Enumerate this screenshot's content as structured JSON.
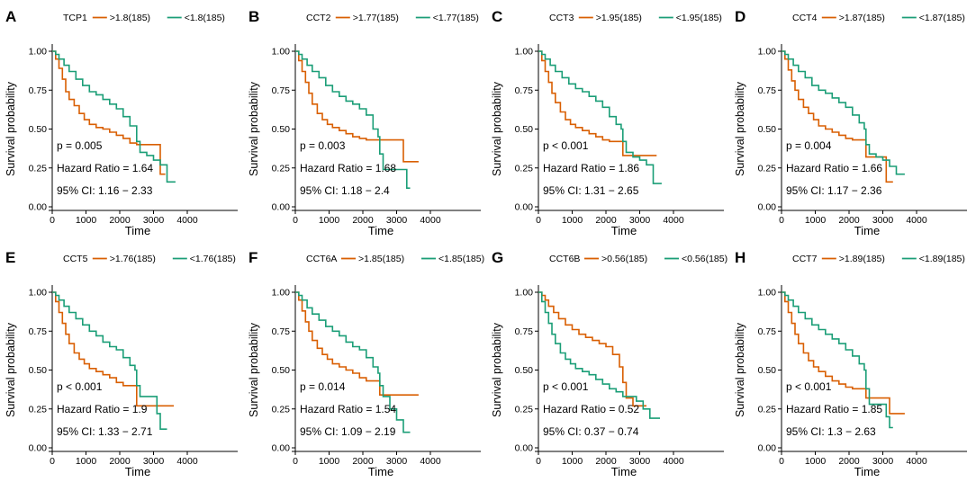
{
  "figure": {
    "legend_high_color": "#d95f02",
    "legend_low_color": "#1b9e77",
    "xlabel": "Time",
    "ylabel": "Survival probability",
    "x_ticks": [
      0,
      1000,
      2000,
      3000,
      4000
    ],
    "y_ticks": [
      "0.00",
      "0.25",
      "0.50",
      "0.75",
      "1.00"
    ]
  },
  "chart_data": [
    {
      "type": "line",
      "panel": "A",
      "gene": "TCP1",
      "series": [
        {
          "name": ">1.8(185)",
          "x": [
            0,
            100,
            200,
            300,
            400,
            500,
            650,
            800,
            950,
            1100,
            1300,
            1500,
            1700,
            1900,
            2100,
            2300,
            2500,
            2700,
            2900,
            3100,
            3200,
            3350
          ],
          "y": [
            1.0,
            0.95,
            0.89,
            0.82,
            0.74,
            0.69,
            0.65,
            0.6,
            0.56,
            0.53,
            0.51,
            0.5,
            0.48,
            0.46,
            0.44,
            0.41,
            0.4,
            0.4,
            0.4,
            0.4,
            0.21,
            0.21
          ]
        },
        {
          "name": "<1.8(185)",
          "x": [
            0,
            100,
            200,
            350,
            500,
            700,
            900,
            1100,
            1300,
            1500,
            1700,
            1900,
            2100,
            2300,
            2450,
            2500,
            2600,
            2800,
            3000,
            3200,
            3400,
            3650
          ],
          "y": [
            1.0,
            0.98,
            0.95,
            0.91,
            0.87,
            0.82,
            0.78,
            0.74,
            0.72,
            0.69,
            0.66,
            0.63,
            0.58,
            0.52,
            0.52,
            0.42,
            0.35,
            0.33,
            0.3,
            0.27,
            0.16,
            0.16
          ]
        }
      ],
      "p_text": "p = 0.005",
      "hr_text": "Hazard Ratio = 1.64",
      "ci_text": "95% CI: 1.16 − 2.33"
    },
    {
      "type": "line",
      "panel": "B",
      "gene": "CCT2",
      "series": [
        {
          "name": ">1.77(185)",
          "x": [
            0,
            100,
            200,
            300,
            400,
            500,
            650,
            800,
            950,
            1100,
            1300,
            1500,
            1700,
            1900,
            2100,
            2300,
            2500,
            2700,
            2900,
            3100,
            3200,
            3650
          ],
          "y": [
            1.0,
            0.94,
            0.87,
            0.8,
            0.73,
            0.66,
            0.6,
            0.56,
            0.53,
            0.51,
            0.49,
            0.47,
            0.45,
            0.44,
            0.43,
            0.43,
            0.43,
            0.43,
            0.43,
            0.43,
            0.29,
            0.29
          ]
        },
        {
          "name": "<1.77(185)",
          "x": [
            0,
            100,
            200,
            350,
            500,
            700,
            900,
            1100,
            1300,
            1500,
            1700,
            1900,
            2100,
            2300,
            2450,
            2500,
            2600,
            2800,
            3000,
            3200,
            3300,
            3400
          ],
          "y": [
            1.0,
            0.98,
            0.95,
            0.91,
            0.87,
            0.83,
            0.78,
            0.74,
            0.71,
            0.68,
            0.66,
            0.63,
            0.59,
            0.5,
            0.45,
            0.34,
            0.24,
            0.24,
            0.24,
            0.24,
            0.12,
            0.12
          ]
        }
      ],
      "p_text": "p = 0.003",
      "hr_text": "Hazard Ratio = 1.68",
      "ci_text": "95% CI: 1.18 − 2.4"
    },
    {
      "type": "line",
      "panel": "C",
      "gene": "CCT3",
      "series": [
        {
          "name": ">1.95(185)",
          "x": [
            0,
            100,
            200,
            300,
            400,
            500,
            650,
            800,
            950,
            1100,
            1300,
            1500,
            1700,
            1900,
            2100,
            2300,
            2500,
            2700,
            2900,
            3100,
            3300,
            3500
          ],
          "y": [
            1.0,
            0.94,
            0.87,
            0.8,
            0.73,
            0.67,
            0.61,
            0.56,
            0.53,
            0.51,
            0.49,
            0.47,
            0.45,
            0.43,
            0.42,
            0.42,
            0.33,
            0.33,
            0.33,
            0.33,
            0.33,
            0.33
          ]
        },
        {
          "name": "<1.95(185)",
          "x": [
            0,
            100,
            200,
            350,
            500,
            700,
            900,
            1100,
            1300,
            1500,
            1700,
            1900,
            2100,
            2300,
            2450,
            2500,
            2600,
            2800,
            3000,
            3200,
            3400,
            3650
          ],
          "y": [
            1.0,
            0.98,
            0.95,
            0.91,
            0.87,
            0.83,
            0.79,
            0.76,
            0.74,
            0.71,
            0.68,
            0.64,
            0.58,
            0.53,
            0.5,
            0.42,
            0.35,
            0.32,
            0.3,
            0.27,
            0.15,
            0.15
          ]
        }
      ],
      "p_text": "p < 0.001",
      "hr_text": "Hazard Ratio = 1.86",
      "ci_text": "95% CI: 1.31 − 2.65"
    },
    {
      "type": "line",
      "panel": "D",
      "gene": "CCT4",
      "series": [
        {
          "name": ">1.87(185)",
          "x": [
            0,
            100,
            200,
            300,
            400,
            500,
            650,
            800,
            950,
            1100,
            1300,
            1500,
            1700,
            1900,
            2100,
            2300,
            2500,
            2700,
            2900,
            3100,
            3300
          ],
          "y": [
            1.0,
            0.95,
            0.88,
            0.81,
            0.75,
            0.69,
            0.64,
            0.6,
            0.56,
            0.52,
            0.5,
            0.48,
            0.46,
            0.44,
            0.43,
            0.43,
            0.32,
            0.32,
            0.32,
            0.16,
            0.16
          ]
        },
        {
          "name": "<1.87(185)",
          "x": [
            0,
            100,
            200,
            350,
            500,
            700,
            900,
            1100,
            1300,
            1500,
            1700,
            1900,
            2100,
            2300,
            2450,
            2500,
            2600,
            2800,
            3000,
            3200,
            3400,
            3650
          ],
          "y": [
            1.0,
            0.98,
            0.95,
            0.91,
            0.87,
            0.83,
            0.78,
            0.75,
            0.73,
            0.7,
            0.67,
            0.64,
            0.59,
            0.54,
            0.5,
            0.4,
            0.34,
            0.32,
            0.3,
            0.26,
            0.21,
            0.21
          ]
        }
      ],
      "p_text": "p = 0.004",
      "hr_text": "Hazard Ratio = 1.66",
      "ci_text": "95% CI: 1.17 − 2.36"
    },
    {
      "type": "line",
      "panel": "E",
      "gene": "CCT5",
      "series": [
        {
          "name": ">1.76(185)",
          "x": [
            0,
            100,
            200,
            300,
            400,
            500,
            650,
            800,
            950,
            1100,
            1300,
            1500,
            1700,
            1900,
            2100,
            2300,
            2500,
            2700,
            2900,
            3100,
            3300,
            3600
          ],
          "y": [
            1.0,
            0.94,
            0.87,
            0.8,
            0.73,
            0.67,
            0.61,
            0.57,
            0.54,
            0.51,
            0.49,
            0.47,
            0.45,
            0.42,
            0.4,
            0.4,
            0.27,
            0.27,
            0.27,
            0.27,
            0.27,
            0.27
          ]
        },
        {
          "name": "<1.76(185)",
          "x": [
            0,
            100,
            200,
            350,
            500,
            700,
            900,
            1100,
            1300,
            1500,
            1700,
            1900,
            2100,
            2300,
            2450,
            2500,
            2600,
            2800,
            3000,
            3100,
            3200,
            3400
          ],
          "y": [
            1.0,
            0.98,
            0.95,
            0.91,
            0.87,
            0.83,
            0.79,
            0.75,
            0.72,
            0.68,
            0.65,
            0.63,
            0.58,
            0.53,
            0.5,
            0.4,
            0.33,
            0.33,
            0.33,
            0.22,
            0.12,
            0.12
          ]
        }
      ],
      "p_text": "p < 0.001",
      "hr_text": "Hazard Ratio = 1.9",
      "ci_text": "95% CI: 1.33 − 2.71"
    },
    {
      "type": "line",
      "panel": "F",
      "gene": "CCT6A",
      "series": [
        {
          "name": ">1.85(185)",
          "x": [
            0,
            100,
            200,
            300,
            400,
            500,
            650,
            800,
            950,
            1100,
            1300,
            1500,
            1700,
            1900,
            2100,
            2300,
            2500,
            2700,
            2900,
            3100,
            3300,
            3650
          ],
          "y": [
            1.0,
            0.95,
            0.88,
            0.81,
            0.75,
            0.69,
            0.64,
            0.6,
            0.57,
            0.54,
            0.52,
            0.5,
            0.48,
            0.45,
            0.43,
            0.43,
            0.34,
            0.34,
            0.34,
            0.34,
            0.34,
            0.34
          ]
        },
        {
          "name": "<1.85(185)",
          "x": [
            0,
            100,
            200,
            350,
            500,
            700,
            900,
            1100,
            1300,
            1500,
            1700,
            1900,
            2100,
            2300,
            2450,
            2500,
            2600,
            2800,
            3000,
            3200,
            3400
          ],
          "y": [
            1.0,
            0.98,
            0.95,
            0.9,
            0.86,
            0.82,
            0.78,
            0.75,
            0.72,
            0.68,
            0.65,
            0.63,
            0.58,
            0.52,
            0.48,
            0.4,
            0.33,
            0.25,
            0.18,
            0.1,
            0.1
          ]
        }
      ],
      "p_text": "p = 0.014",
      "hr_text": "Hazard Ratio = 1.54",
      "ci_text": "95% CI: 1.09 − 2.19"
    },
    {
      "type": "line",
      "panel": "G",
      "gene": "CCT6B",
      "series": [
        {
          "name": ">0.56(185)",
          "x": [
            0,
            100,
            200,
            300,
            450,
            600,
            800,
            1000,
            1200,
            1400,
            1600,
            1800,
            2000,
            2200,
            2400,
            2500,
            2600,
            2800,
            3000,
            3200
          ],
          "y": [
            1.0,
            0.98,
            0.95,
            0.91,
            0.87,
            0.83,
            0.79,
            0.76,
            0.73,
            0.71,
            0.69,
            0.67,
            0.65,
            0.6,
            0.52,
            0.42,
            0.32,
            0.27,
            0.27,
            0.27
          ]
        },
        {
          "name": "<0.56(185)",
          "x": [
            0,
            100,
            200,
            300,
            400,
            500,
            650,
            800,
            950,
            1100,
            1300,
            1500,
            1700,
            1900,
            2100,
            2300,
            2500,
            2700,
            2900,
            3100,
            3300,
            3600
          ],
          "y": [
            1.0,
            0.94,
            0.87,
            0.8,
            0.73,
            0.67,
            0.61,
            0.57,
            0.54,
            0.51,
            0.49,
            0.47,
            0.44,
            0.41,
            0.38,
            0.36,
            0.33,
            0.33,
            0.3,
            0.25,
            0.19,
            0.19
          ]
        }
      ],
      "p_text": "p < 0.001",
      "hr_text": "Hazard Ratio = 0.52",
      "ci_text": "95% CI: 0.37 − 0.74"
    },
    {
      "type": "line",
      "panel": "H",
      "gene": "CCT7",
      "series": [
        {
          "name": ">1.89(185)",
          "x": [
            0,
            100,
            200,
            300,
            400,
            500,
            650,
            800,
            950,
            1100,
            1300,
            1500,
            1700,
            1900,
            2100,
            2300,
            2500,
            2700,
            2900,
            3100,
            3200,
            3650
          ],
          "y": [
            1.0,
            0.94,
            0.87,
            0.8,
            0.73,
            0.67,
            0.61,
            0.56,
            0.52,
            0.49,
            0.46,
            0.43,
            0.41,
            0.39,
            0.38,
            0.38,
            0.32,
            0.32,
            0.32,
            0.32,
            0.22,
            0.22
          ]
        },
        {
          "name": "<1.89(185)",
          "x": [
            0,
            100,
            200,
            350,
            500,
            700,
            900,
            1100,
            1300,
            1500,
            1700,
            1900,
            2100,
            2300,
            2450,
            2500,
            2600,
            2800,
            3000,
            3100,
            3200,
            3300
          ],
          "y": [
            1.0,
            0.98,
            0.95,
            0.91,
            0.87,
            0.83,
            0.79,
            0.76,
            0.73,
            0.7,
            0.67,
            0.63,
            0.59,
            0.54,
            0.5,
            0.38,
            0.28,
            0.28,
            0.28,
            0.2,
            0.13,
            0.13
          ]
        }
      ],
      "p_text": "p < 0.001",
      "hr_text": "Hazard Ratio = 1.85",
      "ci_text": "95% CI: 1.3 − 2.63"
    }
  ]
}
